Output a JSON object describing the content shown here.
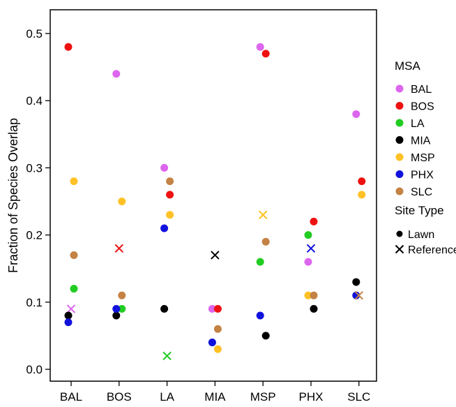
{
  "chart_data": {
    "type": "scatter",
    "title": "",
    "xlabel": "",
    "ylabel": "Fraction of Species Overlap",
    "categories": [
      "BAL",
      "BOS",
      "LA",
      "MIA",
      "MSP",
      "PHX",
      "SLC"
    ],
    "ylim": [
      -0.02,
      0.54
    ],
    "yticks": [
      "0.0",
      "0.1",
      "0.2",
      "0.3",
      "0.4",
      "0.5"
    ],
    "grid": false,
    "legend_placement": "right",
    "series": [
      {
        "name": "BAL",
        "color": "#DD66EE",
        "lawn": [
          {
            "x": "BAL",
            "y": null
          },
          {
            "x": "BOS",
            "y": 0.44
          },
          {
            "x": "LA",
            "y": 0.3
          },
          {
            "x": "MIA",
            "y": 0.09
          },
          {
            "x": "MSP",
            "y": 0.48
          },
          {
            "x": "PHX",
            "y": 0.16
          },
          {
            "x": "SLC",
            "y": 0.38
          }
        ],
        "reference": [
          {
            "x": "BAL",
            "y": 0.09
          }
        ]
      },
      {
        "name": "BOS",
        "color": "#EE1111",
        "lawn": [
          {
            "x": "BAL",
            "y": 0.48
          },
          {
            "x": "LA",
            "y": 0.26
          },
          {
            "x": "MIA",
            "y": 0.09
          },
          {
            "x": "MSP",
            "y": 0.47
          },
          {
            "x": "PHX",
            "y": 0.22
          },
          {
            "x": "SLC",
            "y": 0.28
          }
        ],
        "reference": [
          {
            "x": "BOS",
            "y": 0.18
          }
        ]
      },
      {
        "name": "LA",
        "color": "#22CC22",
        "lawn": [
          {
            "x": "BAL",
            "y": 0.12
          },
          {
            "x": "BOS",
            "y": 0.09
          },
          {
            "x": "MIA",
            "y": 0.04
          },
          {
            "x": "MSP",
            "y": 0.16
          },
          {
            "x": "PHX",
            "y": 0.2
          }
        ],
        "reference": [
          {
            "x": "LA",
            "y": 0.02
          }
        ]
      },
      {
        "name": "MIA",
        "color": "#000000",
        "lawn": [
          {
            "x": "BAL",
            "y": 0.08
          },
          {
            "x": "BOS",
            "y": 0.08
          },
          {
            "x": "LA",
            "y": 0.09
          },
          {
            "x": "MSP",
            "y": 0.05
          },
          {
            "x": "PHX",
            "y": 0.09
          },
          {
            "x": "SLC",
            "y": 0.13
          }
        ],
        "reference": [
          {
            "x": "MIA",
            "y": 0.17
          }
        ]
      },
      {
        "name": "MSP",
        "color": "#FFC125",
        "lawn": [
          {
            "x": "BAL",
            "y": 0.28
          },
          {
            "x": "BOS",
            "y": 0.25
          },
          {
            "x": "LA",
            "y": 0.23
          },
          {
            "x": "MIA",
            "y": 0.03
          },
          {
            "x": "PHX",
            "y": 0.11
          },
          {
            "x": "SLC",
            "y": 0.26
          }
        ],
        "reference": [
          {
            "x": "MSP",
            "y": 0.23
          }
        ]
      },
      {
        "name": "PHX",
        "color": "#1111DD",
        "lawn": [
          {
            "x": "BAL",
            "y": 0.07
          },
          {
            "x": "BOS",
            "y": 0.09
          },
          {
            "x": "LA",
            "y": 0.21
          },
          {
            "x": "MIA",
            "y": 0.04
          },
          {
            "x": "MSP",
            "y": 0.08
          },
          {
            "x": "SLC",
            "y": 0.11
          }
        ],
        "reference": [
          {
            "x": "PHX",
            "y": 0.18
          }
        ]
      },
      {
        "name": "SLC",
        "color": "#C48244",
        "lawn": [
          {
            "x": "BAL",
            "y": 0.17
          },
          {
            "x": "BOS",
            "y": 0.11
          },
          {
            "x": "LA",
            "y": 0.28
          },
          {
            "x": "MIA",
            "y": 0.06
          },
          {
            "x": "MSP",
            "y": 0.19
          },
          {
            "x": "PHX",
            "y": 0.11
          }
        ],
        "reference": [
          {
            "x": "SLC",
            "y": 0.11
          }
        ]
      }
    ],
    "legend_msa_title": "MSA",
    "legend_site_title": "Site Type",
    "site_types": [
      {
        "name": "Lawn",
        "marker": "dot"
      },
      {
        "name": "Reference",
        "marker": "x"
      }
    ]
  }
}
